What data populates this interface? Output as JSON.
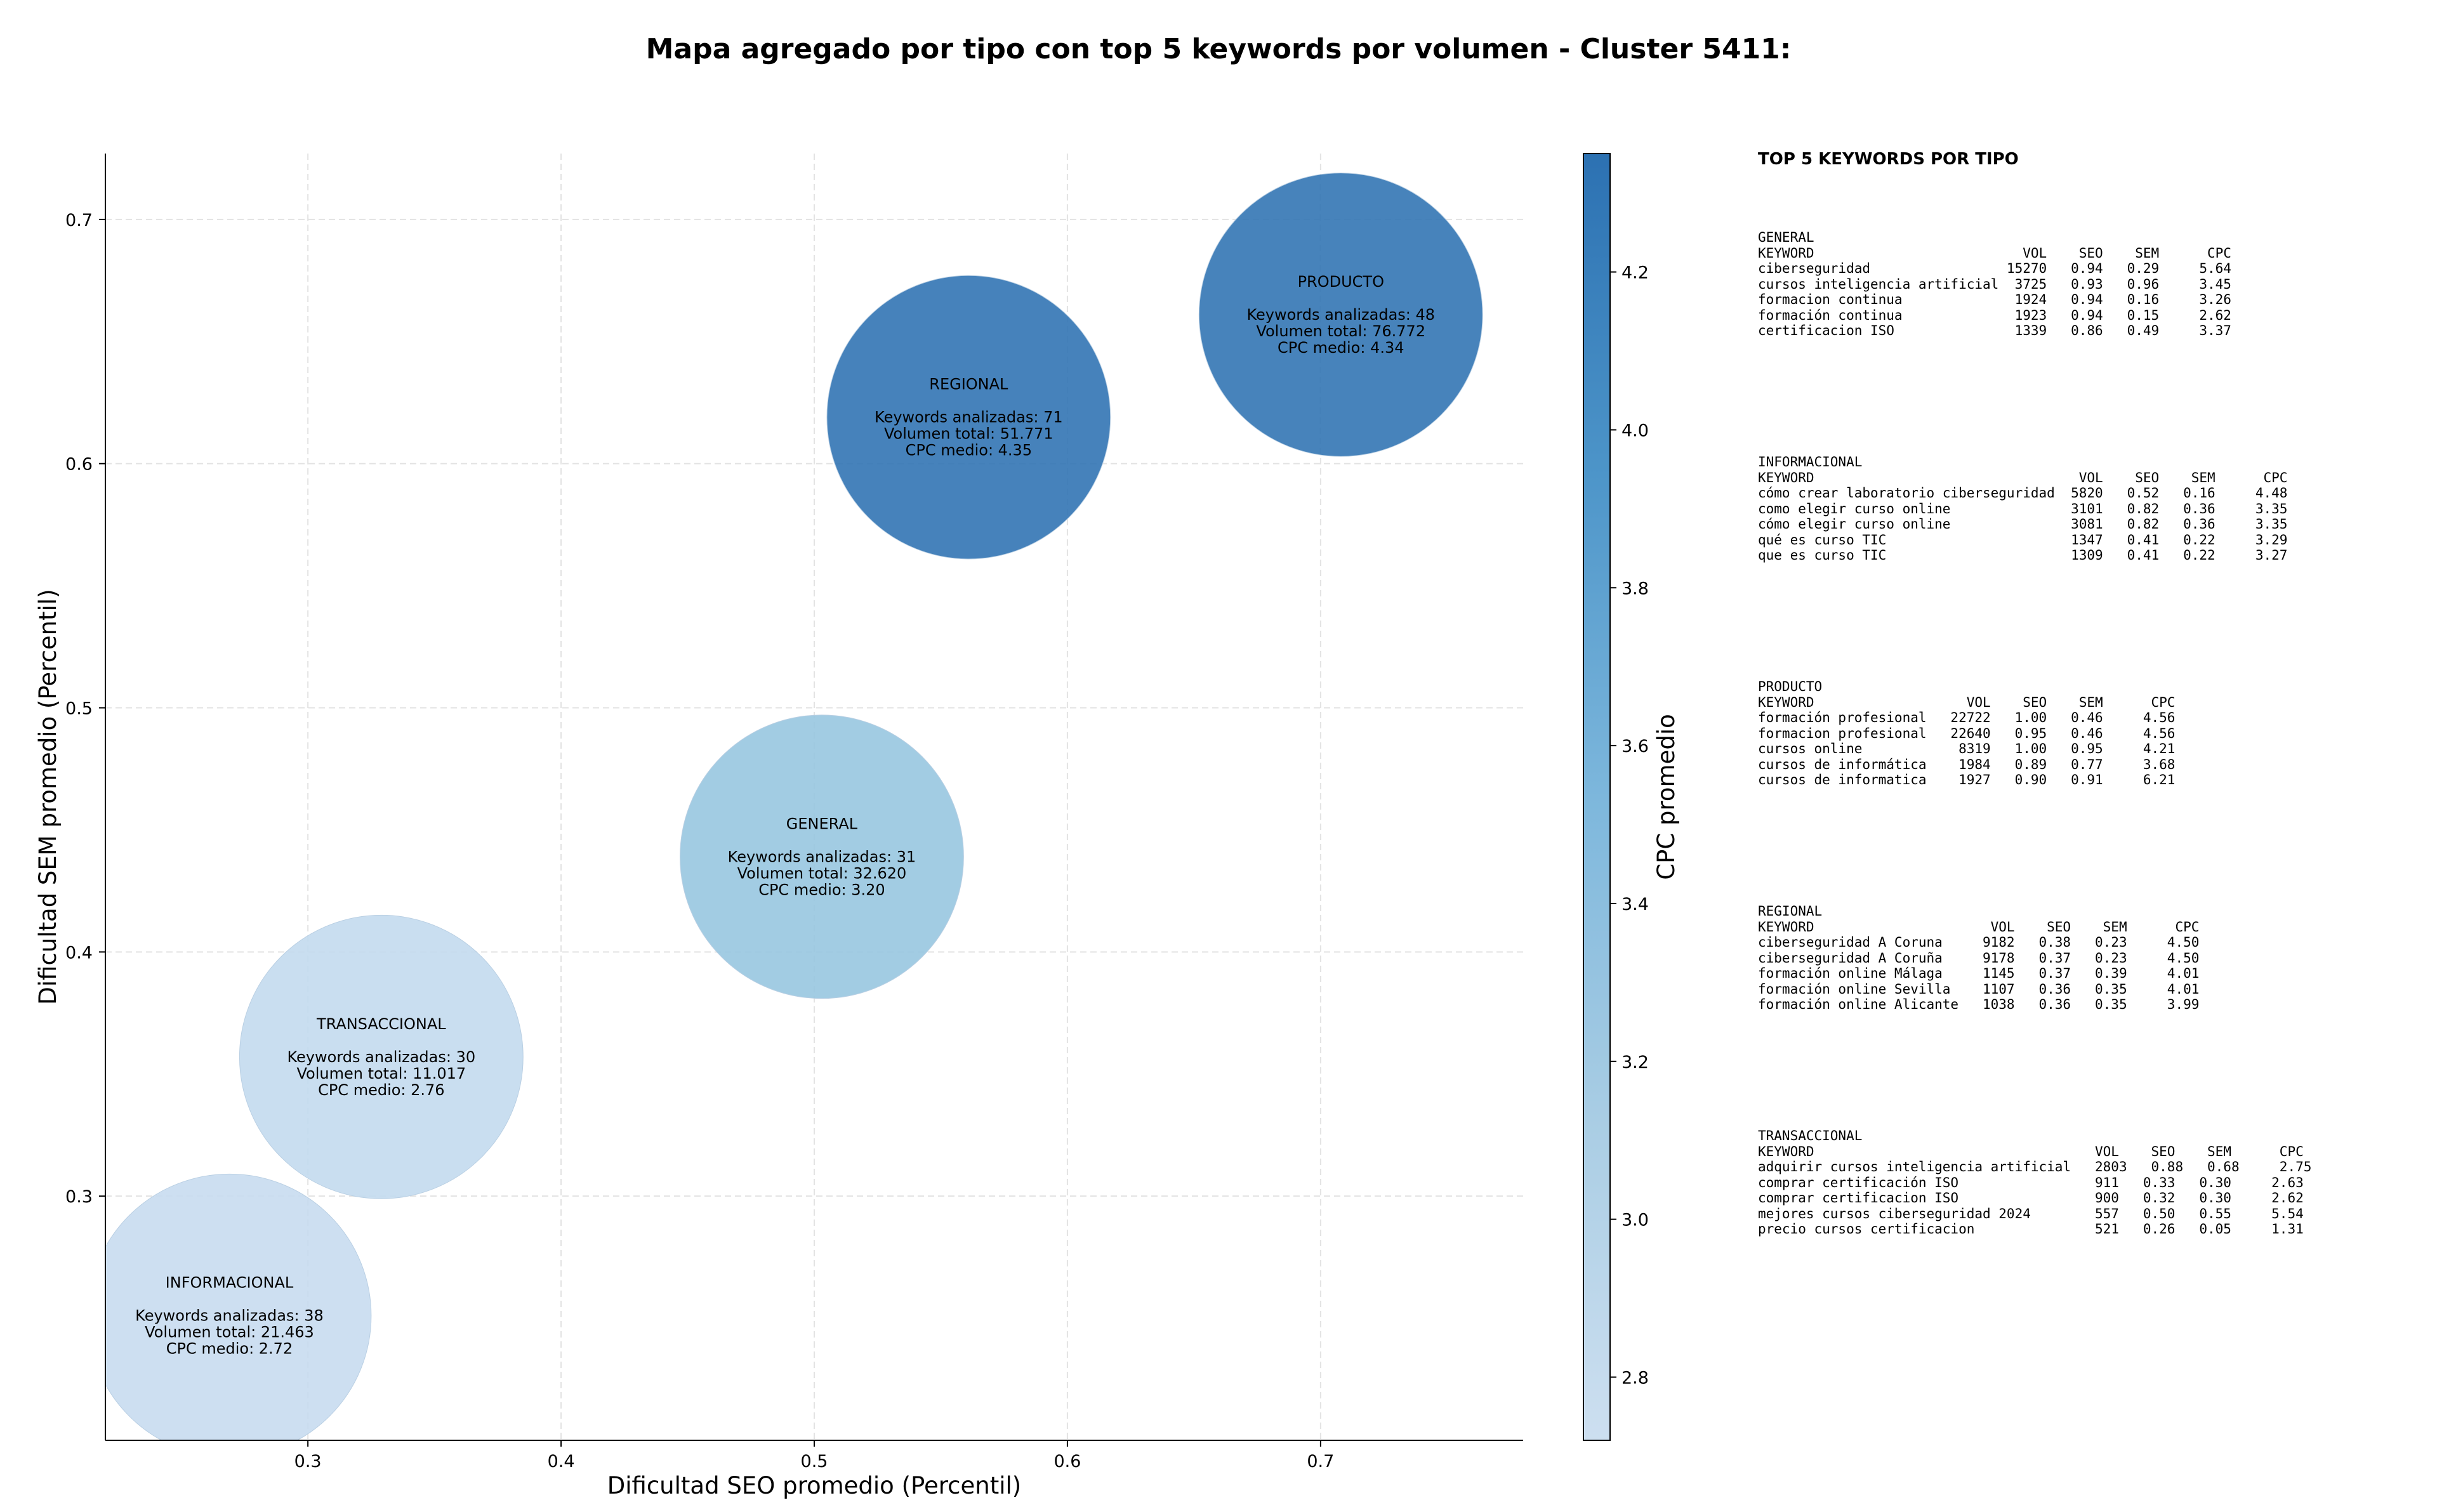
{
  "chart_data": {
    "type": "scatter",
    "title": "Mapa agregado por tipo con top 5 keywords por volumen - Cluster 5411:",
    "xlabel": "Dificultad SEO promedio (Percentil)",
    "ylabel": "Dificultad SEM promedio (Percentil)",
    "colorbar_label": "CPC promedio",
    "xlim": [
      0.22,
      0.78
    ],
    "ylim": [
      0.2,
      0.727
    ],
    "xticks": [
      0.3,
      0.4,
      0.5,
      0.6,
      0.7
    ],
    "yticks": [
      0.3,
      0.4,
      0.5,
      0.6,
      0.7
    ],
    "xtick_labels": [
      "0.3",
      "0.4",
      "0.5",
      "0.6",
      "0.7"
    ],
    "ytick_labels": [
      "0.3",
      "0.4",
      "0.5",
      "0.6",
      "0.7"
    ],
    "colorbar_range": [
      2.72,
      4.35
    ],
    "colorbar_ticks": [
      2.8,
      3.0,
      3.2,
      3.4,
      3.6,
      3.8,
      4.0,
      4.2
    ],
    "colorbar_tick_labels": [
      "2.8",
      "3.0",
      "3.2",
      "3.4",
      "3.6",
      "3.8",
      "4.0",
      "4.2"
    ],
    "colormap": [
      "#c6dbef",
      "#9ecae1",
      "#6baed6",
      "#4292c6",
      "#2c71b2"
    ],
    "grid": true,
    "points": [
      {
        "tipo": "PRODUCTO",
        "x": 0.708,
        "y": 0.661,
        "keywords": 48,
        "volumen": 76772,
        "cpc": 4.34,
        "lines": [
          "PRODUCTO",
          "",
          "Keywords analizadas: 48",
          "Volumen total: 76.772",
          "CPC medio: 4.34"
        ]
      },
      {
        "tipo": "REGIONAL",
        "x": 0.561,
        "y": 0.619,
        "keywords": 71,
        "volumen": 51771,
        "cpc": 4.35,
        "lines": [
          "REGIONAL",
          "",
          "Keywords analizadas: 71",
          "Volumen total: 51.771",
          "CPC medio: 4.35"
        ]
      },
      {
        "tipo": "GENERAL",
        "x": 0.503,
        "y": 0.439,
        "keywords": 31,
        "volumen": 32620,
        "cpc": 3.2,
        "lines": [
          "GENERAL",
          "",
          "Keywords analizadas: 31",
          "Volumen total: 32.620",
          "CPC medio: 3.20"
        ]
      },
      {
        "tipo": "TRANSACCIONAL",
        "x": 0.329,
        "y": 0.357,
        "keywords": 30,
        "volumen": 11017,
        "cpc": 2.76,
        "lines": [
          "TRANSACCIONAL",
          "",
          "Keywords analizadas: 30",
          "Volumen total: 11.017",
          "CPC medio: 2.76"
        ]
      },
      {
        "tipo": "INFORMACIONAL",
        "x": 0.269,
        "y": 0.251,
        "keywords": 38,
        "volumen": 21463,
        "cpc": 2.72,
        "lines": [
          "INFORMACIONAL",
          "",
          "Keywords analizadas: 38",
          "Volumen total: 21.463",
          "CPC medio: 2.72"
        ]
      }
    ]
  },
  "side_panel": {
    "title": "TOP 5 KEYWORDS POR TIPO",
    "blocks": [
      {
        "name": "GENERAL",
        "text": "GENERAL\nKEYWORD                          VOL    SEO    SEM      CPC\nciberseguridad                 15270   0.94   0.29     5.64\ncursos inteligencia artificial  3725   0.93   0.96     3.45\nformacion continua              1924   0.94   0.16     3.26\nformación continua              1923   0.94   0.15     2.62\ncertificacion ISO               1339   0.86   0.49     3.37"
      },
      {
        "name": "INFORMACIONAL",
        "text": "INFORMACIONAL\nKEYWORD                                 VOL    SEO    SEM      CPC\ncómo crear laboratorio ciberseguridad  5820   0.52   0.16     4.48\ncomo elegir curso online               3101   0.82   0.36     3.35\ncómo elegir curso online               3081   0.82   0.36     3.35\nqué es curso TIC                       1347   0.41   0.22     3.29\nque es curso TIC                       1309   0.41   0.22     3.27"
      },
      {
        "name": "PRODUCTO",
        "text": "PRODUCTO\nKEYWORD                   VOL    SEO    SEM      CPC\nformación profesional   22722   1.00   0.46     4.56\nformacion profesional   22640   0.95   0.46     4.56\ncursos online            8319   1.00   0.95     4.21\ncursos de informática    1984   0.89   0.77     3.68\ncursos de informatica    1927   0.90   0.91     6.21"
      },
      {
        "name": "REGIONAL",
        "text": "REGIONAL\nKEYWORD                      VOL    SEO    SEM      CPC\nciberseguridad A Coruna     9182   0.38   0.23     4.50\nciberseguridad A Coruña     9178   0.37   0.23     4.50\nformación online Málaga     1145   0.37   0.39     4.01\nformación online Sevilla    1107   0.36   0.35     4.01\nformación online Alicante   1038   0.36   0.35     3.99"
      },
      {
        "name": "TRANSACCIONAL",
        "text": "TRANSACCIONAL\nKEYWORD                                   VOL    SEO    SEM      CPC\nadquirir cursos inteligencia artificial   2803   0.88   0.68     2.75\ncomprar certificación ISO                 911   0.33   0.30     2.63\ncomprar certificacion ISO                 900   0.32   0.30     2.62\nmejores cursos ciberseguridad 2024        557   0.50   0.55     5.54\nprecio cursos certificacion               521   0.26   0.05     1.31"
      }
    ]
  }
}
